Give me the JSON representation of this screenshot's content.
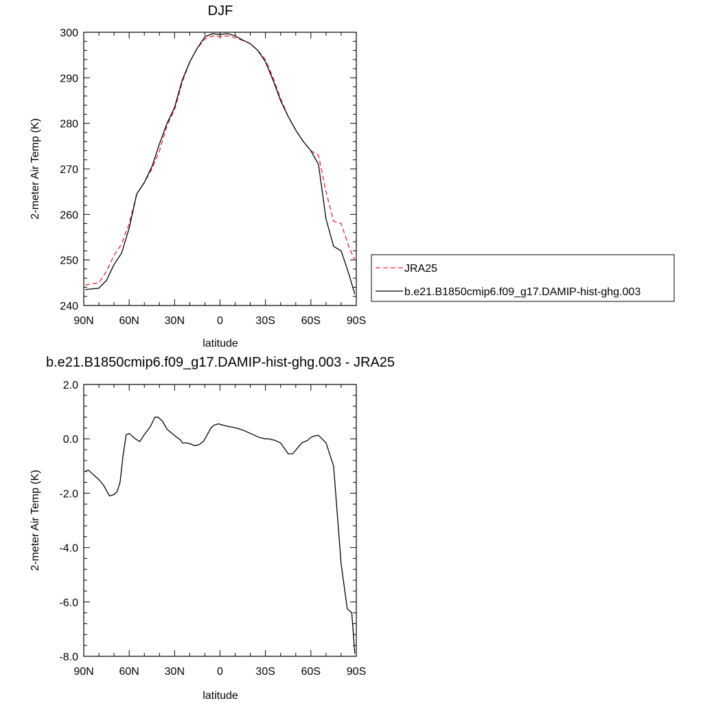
{
  "chart_data": [
    {
      "type": "line",
      "title": "DJF",
      "xlabel": "latitude",
      "ylabel": "2-meter Air Temp (K)",
      "xlim": [
        90,
        -90
      ],
      "ylim": [
        240,
        300
      ],
      "xticks": [
        90,
        60,
        30,
        0,
        -30,
        -60,
        -90
      ],
      "xtick_labels": [
        "90N",
        "60N",
        "30N",
        "0",
        "30S",
        "60S",
        "90S"
      ],
      "yticks": [
        240,
        250,
        260,
        270,
        280,
        290,
        300
      ],
      "ytick_labels": [
        "240",
        "250",
        "260",
        "270",
        "280",
        "290",
        "300"
      ],
      "legend": "right",
      "series": [
        {
          "name": "JRA25",
          "color": "#e8202a",
          "dash": "dashed",
          "x": [
            89,
            80,
            75,
            70,
            65,
            60,
            55,
            50,
            45,
            40,
            35,
            30,
            25,
            20,
            15,
            10,
            5,
            0,
            -5,
            -10,
            -15,
            -20,
            -25,
            -30,
            -35,
            -40,
            -45,
            -50,
            -55,
            -60,
            -65,
            -70,
            -75,
            -80,
            -85,
            -89
          ],
          "y": [
            244.5,
            245,
            247.5,
            251,
            253.5,
            258,
            264.5,
            267,
            270,
            274,
            279.5,
            283,
            289,
            293.5,
            296.5,
            298.5,
            299.2,
            299,
            299.2,
            298.8,
            298.2,
            297.5,
            296,
            294,
            290,
            285.5,
            281.5,
            278.5,
            276,
            274,
            273,
            265,
            258.5,
            258,
            253,
            250
          ]
        },
        {
          "name": "b.e21.B1850cmip6.f09_g17.DAMIP-hist-ghg.003",
          "color": "#000000",
          "dash": "solid",
          "x": [
            89,
            80,
            75,
            70,
            65,
            60,
            55,
            50,
            45,
            40,
            35,
            30,
            25,
            20,
            15,
            10,
            5,
            0,
            -5,
            -10,
            -15,
            -20,
            -25,
            -30,
            -35,
            -40,
            -45,
            -50,
            -55,
            -60,
            -65,
            -70,
            -75,
            -80,
            -85,
            -89
          ],
          "y": [
            243.5,
            243.8,
            245.5,
            249,
            251.5,
            257,
            264.5,
            267,
            270.5,
            275.5,
            280,
            283.5,
            289.5,
            293.5,
            296.5,
            299,
            299.7,
            299.5,
            299.7,
            299.2,
            298.3,
            297.5,
            296,
            293.5,
            289.5,
            285,
            281.5,
            278.5,
            276,
            274,
            271,
            259,
            253,
            252,
            247,
            242.5
          ]
        }
      ]
    },
    {
      "type": "line",
      "title": "b.e21.B1850cmip6.f09_g17.DAMIP-hist-ghg.003 - JRA25",
      "xlabel": "latitude",
      "ylabel": "2-meter Air Temp (K)",
      "xlim": [
        90,
        -90
      ],
      "ylim": [
        -8,
        2
      ],
      "xticks": [
        90,
        60,
        30,
        0,
        -30,
        -60,
        -90
      ],
      "xtick_labels": [
        "90N",
        "60N",
        "30N",
        "0",
        "30S",
        "60S",
        "90S"
      ],
      "yticks": [
        -8,
        -6,
        -4,
        -2,
        0,
        2
      ],
      "ytick_labels": [
        "-8.0",
        "-6.0",
        "-4.0",
        "-2.0",
        "0.0",
        "2.0"
      ],
      "series": [
        {
          "color": "#000000",
          "dash": "solid",
          "x": [
            89,
            87,
            85,
            82,
            80,
            77,
            73,
            70,
            68,
            66,
            64,
            62,
            60,
            56,
            53,
            50,
            46,
            43,
            41,
            38,
            35,
            30,
            26,
            25,
            22,
            19,
            17,
            14,
            11,
            8,
            6,
            4,
            1,
            -2,
            -6,
            -9,
            -12,
            -16,
            -20,
            -24,
            -26,
            -30,
            -32,
            -36,
            -38,
            -40,
            -45,
            -48,
            -54,
            -58,
            -60,
            -62,
            -65,
            -70,
            -75,
            -80,
            -84,
            -87,
            -89
          ],
          "y": [
            -1.2,
            -1.15,
            -1.25,
            -1.4,
            -1.5,
            -1.7,
            -2.1,
            -2.05,
            -1.95,
            -1.6,
            -0.6,
            0.15,
            0.2,
            0.0,
            -0.1,
            0.15,
            0.45,
            0.8,
            0.8,
            0.65,
            0.35,
            0.12,
            -0.05,
            -0.15,
            -0.15,
            -0.2,
            -0.25,
            -0.22,
            -0.1,
            0.2,
            0.4,
            0.5,
            0.55,
            0.5,
            0.45,
            0.42,
            0.38,
            0.3,
            0.2,
            0.1,
            0.05,
            0.0,
            0.0,
            -0.05,
            -0.1,
            -0.15,
            -0.55,
            -0.55,
            -0.15,
            -0.05,
            0.05,
            0.1,
            0.13,
            -0.15,
            -1.0,
            -4.6,
            -6.25,
            -6.4,
            -7.9
          ]
        }
      ]
    }
  ]
}
